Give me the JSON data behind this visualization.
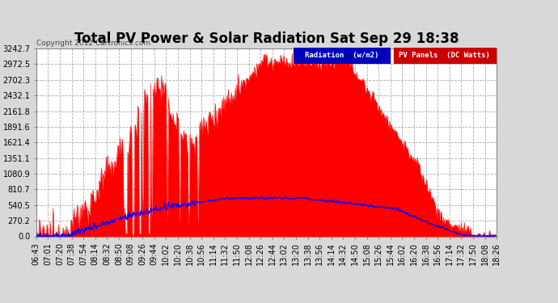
{
  "title": "Total PV Power & Solar Radiation Sat Sep 29 18:38",
  "copyright": "Copyright 2012 Cartronics.com",
  "bg_color": "#d8d8d8",
  "plot_bg_color": "#ffffff",
  "grid_color": "#aaaaaa",
  "ylim": [
    0.0,
    3242.7
  ],
  "yticks": [
    0.0,
    270.2,
    540.5,
    810.7,
    1080.9,
    1351.1,
    1621.4,
    1891.6,
    2161.8,
    2432.1,
    2702.3,
    2972.5,
    3242.7
  ],
  "xlabel": "",
  "ylabel": "",
  "legend_radiation_label": "Radiation  (w/m2)",
  "legend_pv_label": "PV Panels  (DC Watts)",
  "legend_radiation_bg": "#0000bb",
  "legend_pv_bg": "#cc0000",
  "pv_fill_color": "#ff0000",
  "radiation_line_color": "#0000ff",
  "title_fontsize": 12,
  "tick_fontsize": 7,
  "xtick_labels": [
    "06:43",
    "07:01",
    "07:20",
    "07:38",
    "07:54",
    "08:14",
    "08:32",
    "08:50",
    "09:08",
    "09:26",
    "09:44",
    "10:02",
    "10:20",
    "10:38",
    "10:56",
    "11:14",
    "11:32",
    "11:50",
    "12:08",
    "12:26",
    "12:44",
    "13:02",
    "13:20",
    "13:38",
    "13:56",
    "14:14",
    "14:32",
    "14:50",
    "15:08",
    "15:26",
    "15:44",
    "16:02",
    "16:20",
    "16:38",
    "16:56",
    "17:14",
    "17:32",
    "17:50",
    "18:08",
    "18:26"
  ],
  "num_points": 600
}
